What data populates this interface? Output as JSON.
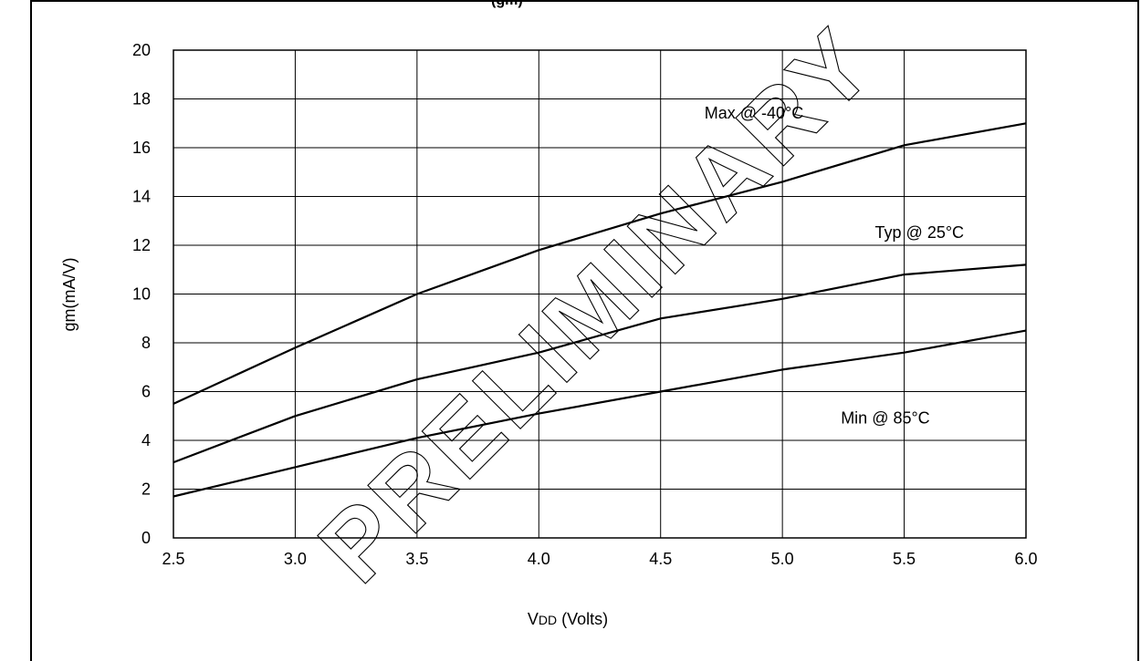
{
  "cut_title": "(gm)",
  "chart_data": {
    "type": "line",
    "title": "",
    "xlabel_main": "V",
    "xlabel_sub": "DD",
    "xlabel_rest": " (Volts)",
    "ylabel": "gm(mA/V)",
    "xlim": [
      2.5,
      6.0
    ],
    "ylim": [
      0,
      20
    ],
    "x_ticks": [
      2.5,
      3.0,
      3.5,
      4.0,
      4.5,
      5.0,
      5.5,
      6.0
    ],
    "x_tick_labels": [
      "2.5",
      "3.0",
      "3.5",
      "4.0",
      "4.5",
      "5.0",
      "5.5",
      "6.0"
    ],
    "y_ticks": [
      0,
      2,
      4,
      6,
      8,
      10,
      12,
      14,
      16,
      18,
      20
    ],
    "y_tick_labels": [
      "0",
      "2",
      "4",
      "6",
      "8",
      "10",
      "12",
      "14",
      "16",
      "18",
      "20"
    ],
    "grid": true,
    "watermark": "PRELIMINARY",
    "series": [
      {
        "name": "Max @ -40°C",
        "x": [
          2.5,
          3.0,
          3.5,
          4.0,
          4.5,
          5.0,
          5.5,
          6.0
        ],
        "values": [
          5.5,
          7.8,
          10.0,
          11.8,
          13.3,
          14.6,
          16.1,
          17.0
        ]
      },
      {
        "name": "Typ @ 25°C",
        "x": [
          2.5,
          3.0,
          3.5,
          4.0,
          4.5,
          5.0,
          5.5,
          6.0
        ],
        "values": [
          3.1,
          5.0,
          6.5,
          7.6,
          9.0,
          9.8,
          10.8,
          11.2
        ]
      },
      {
        "name": "Min @ 85°C",
        "x": [
          2.5,
          3.0,
          3.5,
          4.0,
          4.5,
          5.0,
          5.5,
          6.0
        ],
        "values": [
          1.7,
          2.9,
          4.1,
          5.1,
          6.0,
          6.9,
          7.6,
          8.5
        ]
      }
    ]
  }
}
